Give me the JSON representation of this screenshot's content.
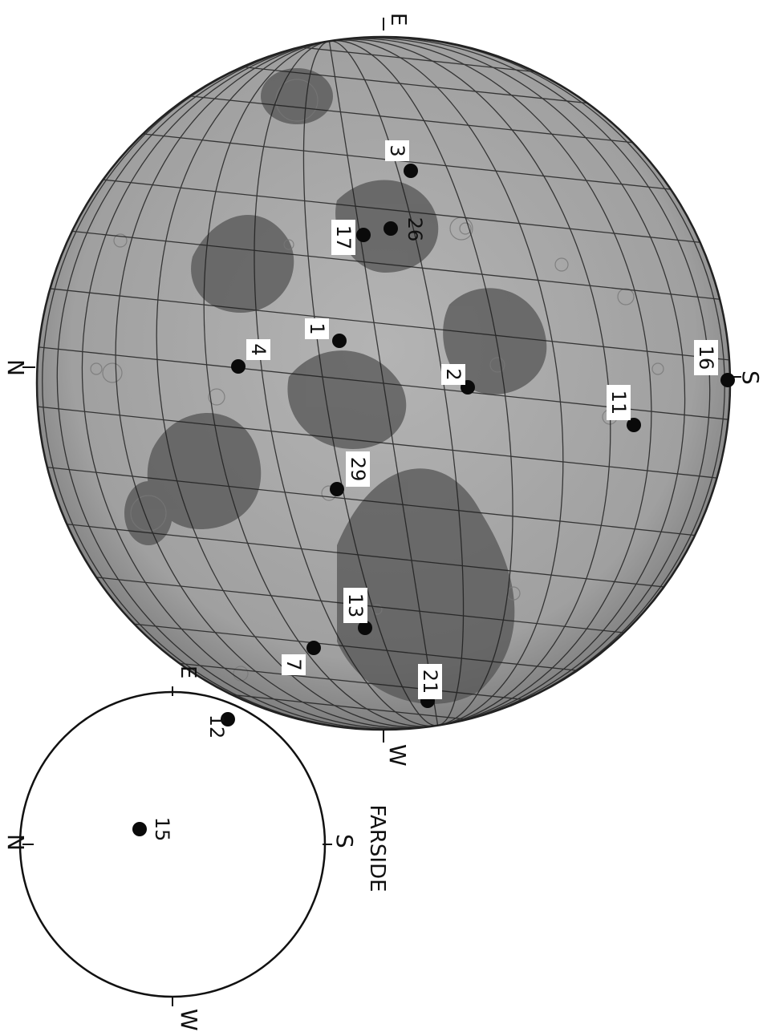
{
  "nearside": {
    "directions": {
      "north": "N",
      "south": "S",
      "east": "E",
      "west": "W"
    },
    "sites": [
      {
        "id": "1",
        "label": "1",
        "boxed": true
      },
      {
        "id": "2",
        "label": "2",
        "boxed": true
      },
      {
        "id": "3",
        "label": "3",
        "boxed": true
      },
      {
        "id": "4",
        "label": "4",
        "boxed": true
      },
      {
        "id": "7",
        "label": "7",
        "boxed": true
      },
      {
        "id": "11",
        "label": "11",
        "boxed": true
      },
      {
        "id": "13",
        "label": "13",
        "boxed": true
      },
      {
        "id": "16",
        "label": "16",
        "boxed": true
      },
      {
        "id": "17",
        "label": "17",
        "boxed": true
      },
      {
        "id": "21",
        "label": "21",
        "boxed": true
      },
      {
        "id": "26",
        "label": "26",
        "boxed": false
      },
      {
        "id": "29",
        "label": "29",
        "boxed": true
      }
    ]
  },
  "farside": {
    "title": "FARSIDE",
    "directions": {
      "north": "N",
      "south": "S",
      "east": "E",
      "west": "W"
    },
    "sites": [
      {
        "id": "12",
        "label": "12"
      },
      {
        "id": "15",
        "label": "15"
      }
    ]
  },
  "colors": {
    "ink": "#111111",
    "paper": "#ffffff",
    "mare_dark": "#4a4a4a",
    "highland": "#9c9c9c"
  }
}
